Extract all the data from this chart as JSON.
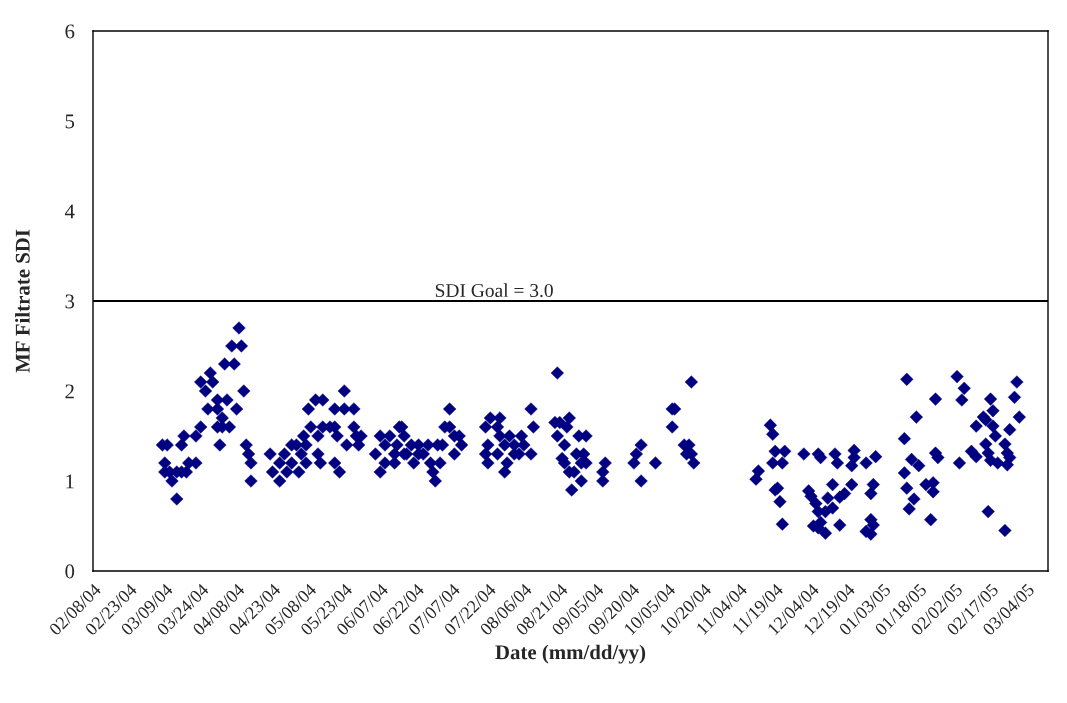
{
  "chart_data": {
    "type": "scatter",
    "xlabel": "Date (mm/dd/yy)",
    "ylabel": "MF Filtrate SDI",
    "x": [
      "2004-03-08",
      "2004-03-10",
      "2004-03-09",
      "2004-03-09",
      "2004-03-11",
      "2004-03-12",
      "2004-03-14",
      "2004-03-14",
      "2004-03-16",
      "2004-03-18",
      "2004-03-16",
      "2004-03-17",
      "2004-03-19",
      "2004-03-22",
      "2004-03-22",
      "2004-03-24",
      "2004-03-24",
      "2004-03-26",
      "2004-03-28",
      "2004-03-29",
      "2004-03-27",
      "2004-03-31",
      "2004-03-31",
      "2004-04-02",
      "2004-03-31",
      "2004-04-02",
      "2004-04-05",
      "2004-04-01",
      "2004-04-04",
      "2004-04-03",
      "2004-04-07",
      "2004-04-06",
      "2004-04-10",
      "2004-04-09",
      "2004-04-08",
      "2004-04-11",
      "2004-04-12",
      "2004-04-13",
      "2004-04-14",
      "2004-04-14",
      "2004-04-22",
      "2004-04-23",
      "2004-04-26",
      "2004-04-28",
      "2004-04-26",
      "2004-04-29",
      "2004-05-01",
      "2004-05-01",
      "2004-05-03",
      "2004-05-04",
      "2004-05-05",
      "2004-05-06",
      "2004-05-07",
      "2004-05-07",
      "2004-05-08",
      "2004-05-09",
      "2004-05-11",
      "2004-05-14",
      "2004-05-12",
      "2004-05-12",
      "2004-05-13",
      "2004-05-14",
      "2004-05-17",
      "2004-05-19",
      "2004-05-20",
      "2004-05-19",
      "2004-05-21",
      "2004-05-19",
      "2004-05-23",
      "2004-05-23",
      "2004-05-27",
      "2004-05-24",
      "2004-05-27",
      "2004-05-28",
      "2004-05-30",
      "2004-05-29",
      "2004-06-05",
      "2004-06-07",
      "2004-06-07",
      "2004-06-09",
      "2004-06-09",
      "2004-06-11",
      "2004-06-13",
      "2004-06-14",
      "2004-06-15",
      "2004-06-17",
      "2004-06-13",
      "2004-06-18",
      "2004-06-20",
      "2004-06-21",
      "2004-06-23",
      "2004-06-16",
      "2004-06-17",
      "2004-06-23",
      "2004-06-25",
      "2004-06-27",
      "2004-06-28",
      "2004-06-29",
      "2004-06-30",
      "2004-07-01",
      "2004-07-03",
      "2004-07-02",
      "2004-07-04",
      "2004-07-06",
      "2004-07-06",
      "2004-07-08",
      "2004-07-10",
      "2004-07-08",
      "2004-07-11",
      "2004-07-21",
      "2004-07-23",
      "2004-07-27",
      "2004-07-22",
      "2004-07-21",
      "2004-07-22",
      "2004-07-26",
      "2004-07-27",
      "2004-07-26",
      "2004-07-29",
      "2004-07-30",
      "2004-07-29",
      "2004-07-31",
      "2004-08-02",
      "2004-08-02",
      "2004-08-04",
      "2004-08-05",
      "2004-08-06",
      "2004-08-09",
      "2004-08-09",
      "2004-08-10",
      "2004-08-20",
      "2004-08-19",
      "2004-08-21",
      "2004-08-25",
      "2004-08-24",
      "2004-08-20",
      "2004-08-23",
      "2004-08-22",
      "2004-08-23",
      "2004-08-25",
      "2004-08-27",
      "2004-08-26",
      "2004-08-29",
      "2004-09-01",
      "2004-08-28",
      "2004-08-31",
      "2004-09-01",
      "2004-08-30",
      "2004-08-30",
      "2004-09-09",
      "2004-09-08",
      "2004-09-08",
      "2004-09-21",
      "2004-09-22",
      "2004-09-24",
      "2004-09-24",
      "2004-09-30",
      "2004-10-07",
      "2004-10-08",
      "2004-10-07",
      "2004-10-15",
      "2004-10-12",
      "2004-10-14",
      "2004-10-13",
      "2004-10-15",
      "2004-10-16",
      "2004-11-11",
      "2004-11-12",
      "2004-11-17",
      "2004-11-18",
      "2004-11-19",
      "2004-11-23",
      "2004-11-18",
      "2004-11-22",
      "2004-11-19",
      "2004-11-20",
      "2004-11-21",
      "2004-11-22",
      "2004-12-01",
      "2004-12-07",
      "2004-12-08",
      "2004-12-14",
      "2004-12-15",
      "2004-12-22",
      "2004-12-22",
      "2004-12-21",
      "2004-12-27",
      "2004-12-31",
      "2004-12-03",
      "2004-12-04",
      "2004-12-06",
      "2004-12-07",
      "2004-12-08",
      "2004-12-05",
      "2004-12-07",
      "2004-12-10",
      "2004-12-10",
      "2004-12-11",
      "2004-12-13",
      "2004-12-13",
      "2004-12-16",
      "2004-12-18",
      "2004-12-21",
      "2004-12-16",
      "2004-12-30",
      "2004-12-29",
      "2004-12-29",
      "2004-12-30",
      "2004-12-27",
      "2004-12-29",
      "2005-01-13",
      "2005-01-17",
      "2005-01-12",
      "2005-01-15",
      "2005-01-18",
      "2005-01-12",
      "2005-01-13",
      "2005-01-16",
      "2005-01-14",
      "2005-01-25",
      "2005-01-25",
      "2005-01-26",
      "2005-01-21",
      "2005-01-24",
      "2005-01-24",
      "2005-01-23",
      "2005-02-03",
      "2005-02-06",
      "2005-02-05",
      "2005-02-04",
      "2005-02-09",
      "2005-02-11",
      "2005-02-14",
      "2005-02-15",
      "2005-02-11",
      "2005-02-18",
      "2005-02-17",
      "2005-02-18",
      "2005-02-19",
      "2005-02-15",
      "2005-02-16",
      "2005-02-17",
      "2005-02-20",
      "2005-02-23",
      "2005-02-24",
      "2005-02-25",
      "2005-02-24",
      "2005-02-25",
      "2005-02-27",
      "2005-02-28",
      "2005-03-01",
      "2005-02-16",
      "2005-02-23"
    ],
    "series": [
      {
        "color": "#000080",
        "values": [
          1.4,
          1.4,
          1.2,
          1.1,
          1.1,
          1.0,
          0.8,
          1.1,
          1.1,
          1.1,
          1.4,
          1.5,
          1.2,
          1.2,
          1.5,
          1.6,
          2.1,
          2.0,
          2.2,
          2.1,
          1.8,
          1.8,
          1.9,
          1.7,
          1.6,
          1.6,
          1.6,
          1.4,
          1.9,
          2.3,
          2.3,
          2.5,
          2.5,
          2.7,
          1.8,
          2.0,
          1.4,
          1.3,
          1.2,
          1.0,
          1.3,
          1.1,
          1.0,
          1.3,
          1.2,
          1.1,
          1.4,
          1.2,
          1.4,
          1.1,
          1.3,
          1.5,
          1.4,
          1.2,
          1.8,
          1.6,
          1.9,
          1.9,
          1.5,
          1.3,
          1.2,
          1.6,
          1.6,
          1.6,
          1.5,
          1.2,
          1.1,
          1.8,
          2.0,
          1.8,
          1.8,
          1.4,
          1.6,
          1.5,
          1.5,
          1.4,
          1.3,
          1.5,
          1.1,
          1.4,
          1.2,
          1.5,
          1.2,
          1.4,
          1.6,
          1.5,
          1.3,
          1.3,
          1.4,
          1.2,
          1.3,
          1.6,
          1.3,
          1.4,
          1.3,
          1.4,
          1.2,
          1.1,
          1.0,
          1.4,
          1.4,
          1.2,
          1.6,
          1.8,
          1.6,
          1.5,
          1.5,
          1.3,
          1.4,
          1.6,
          1.7,
          1.7,
          1.4,
          1.3,
          1.2,
          1.6,
          1.5,
          1.3,
          1.4,
          1.2,
          1.1,
          1.5,
          1.4,
          1.3,
          1.3,
          1.5,
          1.4,
          1.3,
          1.8,
          1.6,
          2.2,
          1.65,
          1.65,
          1.7,
          1.6,
          1.5,
          1.4,
          1.25,
          1.2,
          1.1,
          1.1,
          0.9,
          1.5,
          1.5,
          1.3,
          1.3,
          1.2,
          1.0,
          1.2,
          1.2,
          1.1,
          1.0,
          1.2,
          1.3,
          1.4,
          1.0,
          1.2,
          1.8,
          1.8,
          1.6,
          2.1,
          1.4,
          1.4,
          1.3,
          1.3,
          1.2,
          1.02,
          1.11,
          1.62,
          1.52,
          1.33,
          1.33,
          1.2,
          1.2,
          0.9,
          0.92,
          0.77,
          0.52,
          1.3,
          1.3,
          1.26,
          1.3,
          1.2,
          1.34,
          1.26,
          1.17,
          1.2,
          1.27,
          0.89,
          0.83,
          0.75,
          0.66,
          0.54,
          0.5,
          0.48,
          0.42,
          0.66,
          0.81,
          0.7,
          0.96,
          0.82,
          0.86,
          0.96,
          0.51,
          0.96,
          0.86,
          0.57,
          0.51,
          0.44,
          0.41,
          2.13,
          1.71,
          1.47,
          1.24,
          1.17,
          1.09,
          0.92,
          0.8,
          0.69,
          1.91,
          1.31,
          1.26,
          0.96,
          0.98,
          0.88,
          0.57,
          2.16,
          2.03,
          1.9,
          1.2,
          1.33,
          1.27,
          1.71,
          1.68,
          1.61,
          1.61,
          1.91,
          1.78,
          1.5,
          1.41,
          1.31,
          1.23,
          1.2,
          1.41,
          1.31,
          1.26,
          1.18,
          1.57,
          1.93,
          2.1,
          1.71,
          0.66,
          0.45
        ]
      }
    ],
    "marker": "diamond",
    "grid": false,
    "legend": false,
    "xlim": [
      "2004-02-08",
      "2005-03-13"
    ],
    "xticks": [
      {
        "value": "2004-02-08",
        "label": "02/08/04"
      },
      {
        "value": "2004-02-23",
        "label": "02/23/04"
      },
      {
        "value": "2004-03-09",
        "label": "03/09/04"
      },
      {
        "value": "2004-03-24",
        "label": "03/24/04"
      },
      {
        "value": "2004-04-08",
        "label": "04/08/04"
      },
      {
        "value": "2004-04-23",
        "label": "04/23/04"
      },
      {
        "value": "2004-05-08",
        "label": "05/08/04"
      },
      {
        "value": "2004-05-23",
        "label": "05/23/04"
      },
      {
        "value": "2004-06-07",
        "label": "06/07/04"
      },
      {
        "value": "2004-06-22",
        "label": "06/22/04"
      },
      {
        "value": "2004-07-07",
        "label": "07/07/04"
      },
      {
        "value": "2004-07-22",
        "label": "07/22/04"
      },
      {
        "value": "2004-08-06",
        "label": "08/06/04"
      },
      {
        "value": "2004-08-21",
        "label": "08/21/04"
      },
      {
        "value": "2004-09-05",
        "label": "09/05/04"
      },
      {
        "value": "2004-09-20",
        "label": "09/20/04"
      },
      {
        "value": "2004-10-05",
        "label": "10/05/04"
      },
      {
        "value": "2004-10-20",
        "label": "10/20/04"
      },
      {
        "value": "2004-11-04",
        "label": "11/04/04"
      },
      {
        "value": "2004-11-19",
        "label": "11/19/04"
      },
      {
        "value": "2004-12-04",
        "label": "12/04/04"
      },
      {
        "value": "2004-12-19",
        "label": "12/19/04"
      },
      {
        "value": "2005-01-03",
        "label": "01/03/05"
      },
      {
        "value": "2005-01-18",
        "label": "01/18/05"
      },
      {
        "value": "2005-02-02",
        "label": "02/02/05"
      },
      {
        "value": "2005-02-17",
        "label": "02/17/05"
      },
      {
        "value": "2005-03-04",
        "label": "03/04/05"
      }
    ],
    "ylim": [
      0,
      6
    ],
    "yticks": [
      0,
      1,
      2,
      3,
      4,
      5,
      6
    ],
    "ref_lines": [
      {
        "axis": "y",
        "value": 3,
        "label": "SDI Goal = 3.0",
        "color": "#000000",
        "line_style": "solid"
      }
    ]
  }
}
